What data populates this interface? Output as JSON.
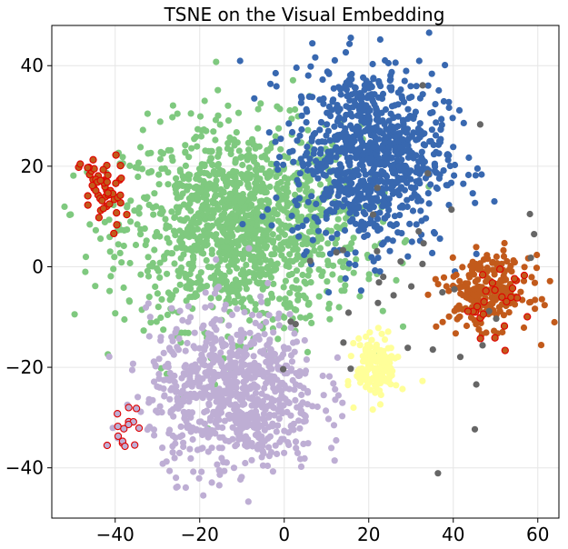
{
  "chart_data": {
    "type": "scatter",
    "title": "TSNE on the Visual Embedding",
    "xlabel": "",
    "ylabel": "",
    "xlim": [
      -55,
      65
    ],
    "ylim": [
      -50,
      48
    ],
    "xticks": [
      -40,
      -20,
      0,
      20,
      40,
      60
    ],
    "yticks": [
      -40,
      -20,
      0,
      20,
      40
    ],
    "xtick_labels": [
      "−40",
      "−20",
      "0",
      "20",
      "40",
      "60"
    ],
    "ytick_labels": [
      "−40",
      "−20",
      "0",
      "20",
      "40"
    ],
    "grid": true,
    "legend": "none",
    "clusters": [
      {
        "color": "#7fc97f",
        "center": [
          -10,
          8
        ],
        "spread": [
          14,
          10
        ],
        "approx_count": 1300
      },
      {
        "color": "#3868b0",
        "center": [
          20,
          22
        ],
        "spread": [
          9,
          9
        ],
        "approx_count": 900
      },
      {
        "color": "#beaed4",
        "center": [
          -12,
          -25
        ],
        "spread": [
          10,
          8
        ],
        "approx_count": 800
      },
      {
        "color": "#c25a1b",
        "center": [
          48,
          -5
        ],
        "spread": [
          5,
          3.5
        ],
        "approx_count": 250
      },
      {
        "color": "#ffff99",
        "center": [
          22,
          -20
        ],
        "spread": [
          2.5,
          3
        ],
        "approx_count": 150
      },
      {
        "color": "#666666",
        "center": [
          30,
          -5
        ],
        "spread": [
          15,
          15
        ],
        "approx_count": 40
      }
    ],
    "highlighted": {
      "edge_color": "#e00000",
      "groups": [
        {
          "center": [
            -43,
            15
          ],
          "spread": [
            2.5,
            4
          ],
          "fill": "#c25a1b",
          "approx_count": 55
        },
        {
          "center": [
            -38,
            -32
          ],
          "spread": [
            2,
            2
          ],
          "fill": "#beaed4",
          "approx_count": 15
        },
        {
          "center": [
            50,
            -7
          ],
          "spread": [
            4,
            4
          ],
          "fill": "#c25a1b",
          "approx_count": 25
        }
      ]
    }
  }
}
